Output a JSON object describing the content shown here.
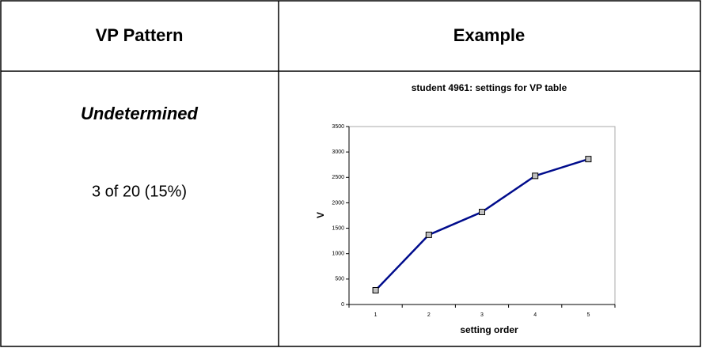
{
  "table": {
    "header": [
      "VP Pattern",
      "Example"
    ],
    "rows": [
      [
        "Undetermined",
        "3 of 20 (15%)"
      ]
    ]
  },
  "chart_data": {
    "type": "line",
    "title": "student 4961: settings for VP table",
    "x_label": "setting order",
    "y_label": "V",
    "categories": [
      "1",
      "2",
      "3",
      "4",
      "5"
    ],
    "series": [
      {
        "name": "V",
        "color": "#000c8c",
        "values": [
          280,
          1370,
          1820,
          2530,
          2860
        ]
      }
    ],
    "ylim": [
      0,
      3500
    ],
    "yticks": [
      0,
      500,
      1000,
      1500,
      2000,
      2500,
      3000,
      3500
    ]
  }
}
